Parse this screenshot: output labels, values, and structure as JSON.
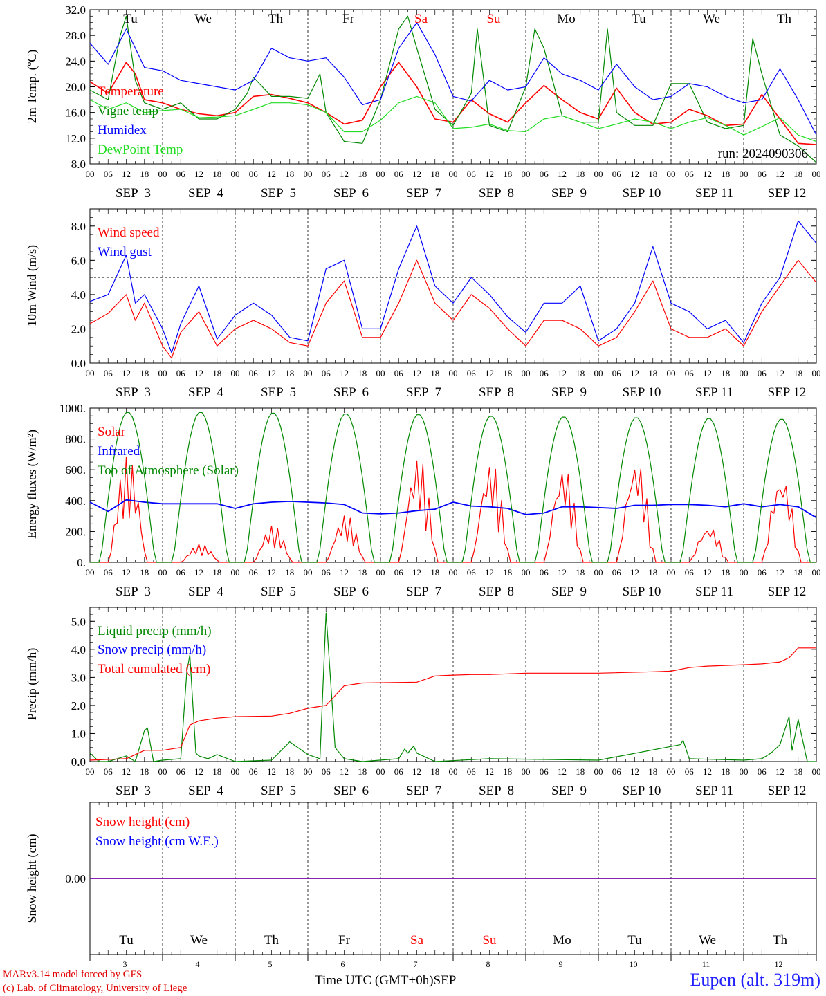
{
  "run_label": "run: 2024090306",
  "x_axis": {
    "hour_labels": [
      "00",
      "06",
      "12",
      "18"
    ],
    "final_hour_label": "00",
    "date_labels": [
      "SEP  3",
      "SEP  4",
      "SEP  5",
      "SEP  6",
      "SEP  7",
      "SEP  8",
      "SEP  9",
      "SEP 10",
      "SEP 11",
      "SEP 12"
    ],
    "days": [
      {
        "label": "Tu",
        "weekend": false
      },
      {
        "label": "We",
        "weekend": false
      },
      {
        "label": "Th",
        "weekend": false
      },
      {
        "label": "Fr",
        "weekend": false
      },
      {
        "label": "Sa",
        "weekend": true
      },
      {
        "label": "Su",
        "weekend": true
      },
      {
        "label": "Mo",
        "weekend": false
      },
      {
        "label": "Tu",
        "weekend": false
      },
      {
        "label": "We",
        "weekend": false
      },
      {
        "label": "Th",
        "weekend": false
      }
    ],
    "day_numbers": [
      "3",
      "4",
      "5",
      "6",
      "7",
      "8",
      "9",
      "10",
      "11",
      "12"
    ],
    "title": "Time UTC (GMT+0h)",
    "month": "SEP"
  },
  "colors": {
    "red": "#ff0000",
    "green": "#008800",
    "blue": "#0000ff",
    "lightgreen": "#22dd22",
    "weekend": "#ff0000",
    "snowline": "#7700aa"
  },
  "chart_data": [
    {
      "type": "line",
      "ylabel": "2m Temp. (ºC)",
      "ylim": [
        8,
        32
      ],
      "yticks": [
        "8.0",
        "12.0",
        "16.0",
        "20.0",
        "24.0",
        "28.0",
        "32.0"
      ],
      "x_unit": "hours since SEP 3 00 UTC",
      "series": [
        {
          "name": "Temperature",
          "color": "red",
          "x": [
            0,
            6,
            12,
            15,
            18,
            24,
            30,
            36,
            42,
            48,
            54,
            60,
            66,
            72,
            78,
            84,
            90,
            96,
            102,
            108,
            114,
            120,
            126,
            132,
            138,
            144,
            150,
            156,
            162,
            168,
            174,
            180,
            186,
            192,
            198,
            204,
            210,
            216,
            222,
            228,
            234,
            240
          ],
          "values": [
            20.8,
            19,
            23.8,
            22,
            18,
            17.5,
            16.5,
            15.8,
            15.5,
            16,
            18.5,
            18.8,
            18.2,
            17.5,
            16,
            14.2,
            14.8,
            20,
            23.8,
            20,
            15,
            14.5,
            18,
            15.8,
            14.5,
            17.5,
            20.2,
            18,
            16,
            15,
            19.8,
            16,
            14.2,
            14.5,
            16.5,
            15.5,
            14,
            14.2,
            18.8,
            15,
            11.2,
            11
          ]
        },
        {
          "name": "Vigne temp",
          "color": "green",
          "x": [
            0,
            6,
            10,
            12,
            15,
            18,
            24,
            30,
            36,
            42,
            48,
            52,
            54,
            60,
            66,
            72,
            76,
            78,
            84,
            90,
            96,
            102,
            105,
            108,
            114,
            120,
            126,
            128,
            132,
            138,
            144,
            147,
            150,
            156,
            162,
            168,
            171,
            174,
            180,
            186,
            192,
            198,
            204,
            210,
            216,
            219,
            222,
            228,
            234,
            240
          ],
          "values": [
            19.5,
            18,
            28,
            31,
            21,
            17.5,
            16.5,
            17.5,
            15,
            15,
            16.5,
            19,
            21.5,
            18.5,
            18.5,
            18.2,
            22,
            16,
            11.5,
            11.2,
            18,
            29,
            31,
            26,
            16.5,
            14,
            19,
            29,
            14,
            13,
            20,
            29,
            26,
            15.5,
            14.5,
            14.5,
            29,
            16,
            14,
            14,
            20.5,
            20.5,
            14.5,
            13.5,
            14,
            27.5,
            22,
            12.5,
            10.8,
            8.2
          ]
        },
        {
          "name": "Humidex",
          "color": "blue",
          "x": [
            0,
            6,
            12,
            18,
            24,
            30,
            36,
            42,
            48,
            54,
            60,
            66,
            72,
            78,
            84,
            90,
            96,
            102,
            108,
            114,
            120,
            126,
            132,
            138,
            144,
            150,
            156,
            162,
            168,
            174,
            180,
            186,
            192,
            198,
            204,
            210,
            216,
            222,
            228,
            234,
            240
          ],
          "values": [
            26.8,
            23.5,
            29,
            23,
            22.5,
            21,
            20.5,
            20,
            19.5,
            21,
            26,
            24.5,
            24,
            24.5,
            21.5,
            17.2,
            18,
            26,
            30,
            25,
            18.5,
            17.8,
            21,
            19.5,
            20,
            24.5,
            22,
            21,
            19.5,
            23.5,
            20,
            18,
            18.5,
            20.5,
            20,
            18.5,
            17.5,
            18,
            22.8,
            18,
            12.5
          ]
        },
        {
          "name": "DewPoint Temp",
          "color": "lightgreen",
          "x": [
            0,
            6,
            12,
            18,
            24,
            30,
            36,
            42,
            48,
            54,
            60,
            66,
            72,
            78,
            84,
            90,
            96,
            102,
            108,
            114,
            120,
            126,
            132,
            138,
            144,
            150,
            156,
            162,
            168,
            174,
            180,
            186,
            192,
            198,
            204,
            210,
            216,
            222,
            228,
            234,
            240
          ],
          "values": [
            18,
            16.5,
            17.5,
            16,
            16.3,
            16.5,
            15.2,
            15.3,
            15.5,
            16.5,
            17.5,
            17.5,
            17.2,
            16,
            13,
            13,
            14.8,
            17.5,
            18.5,
            17.5,
            13.5,
            13.7,
            14.2,
            13.2,
            13,
            15,
            15.5,
            14.5,
            13.5,
            14.2,
            15,
            14.5,
            13.5,
            14.5,
            15.2,
            14,
            12.5,
            13.8,
            15.2,
            12.5,
            11.5
          ]
        }
      ]
    },
    {
      "type": "line",
      "ylabel": "10m Wind (m/s)",
      "ylim": [
        0,
        9
      ],
      "yticks": [
        "0.0",
        "2.0",
        "4.0",
        "6.0",
        "8.0"
      ],
      "reference_line": 5,
      "series": [
        {
          "name": "Wind speed",
          "color": "red",
          "x": [
            0,
            6,
            12,
            15,
            18,
            24,
            27,
            30,
            36,
            42,
            48,
            54,
            60,
            66,
            72,
            78,
            84,
            90,
            96,
            102,
            108,
            114,
            120,
            126,
            132,
            138,
            144,
            150,
            156,
            162,
            168,
            174,
            180,
            186,
            192,
            198,
            204,
            210,
            216,
            222,
            228,
            234,
            240
          ],
          "values": [
            2.3,
            2.9,
            4,
            2.5,
            3.5,
            1,
            0.3,
            1.8,
            3,
            1,
            2,
            2.5,
            2,
            1.2,
            1,
            3.5,
            4.8,
            1.5,
            1.5,
            3.5,
            6,
            3.5,
            2.5,
            4,
            3.2,
            2,
            1,
            2.5,
            2.5,
            2,
            1,
            1.5,
            3,
            4.8,
            2,
            1.5,
            1.5,
            2,
            1,
            3,
            4.5,
            6,
            4.7
          ]
        },
        {
          "name": "Wind gust",
          "color": "blue",
          "x": [
            0,
            6,
            12,
            15,
            18,
            24,
            27,
            30,
            36,
            42,
            48,
            54,
            60,
            66,
            72,
            78,
            84,
            90,
            96,
            102,
            108,
            114,
            120,
            126,
            132,
            138,
            144,
            150,
            156,
            162,
            168,
            174,
            180,
            186,
            192,
            198,
            204,
            210,
            216,
            222,
            228,
            234,
            240
          ],
          "values": [
            3.6,
            4,
            6.3,
            3.5,
            4,
            2,
            0.6,
            2.3,
            4.5,
            1.4,
            2.8,
            3.5,
            2.8,
            1.5,
            1.3,
            5.5,
            6,
            2,
            2,
            5.5,
            8,
            4.5,
            3.5,
            5,
            4,
            2.7,
            1.8,
            3.5,
            3.5,
            4.5,
            1.3,
            2,
            3.5,
            6.8,
            3.5,
            3,
            2,
            2.5,
            1.2,
            3.5,
            5,
            8.3,
            7
          ]
        }
      ]
    },
    {
      "type": "line",
      "ylabel": "Energy fluxes (W/m²)",
      "ylim": [
        0,
        1000
      ],
      "yticks": [
        "0.",
        "200.",
        "400.",
        "600.",
        "800.",
        "1000."
      ],
      "series": [
        {
          "name": "Solar",
          "color": "red",
          "peaks": [
            690,
            120,
            240,
            310,
            690,
            660,
            630,
            680,
            240,
            580
          ]
        },
        {
          "name": "Infrared",
          "color": "blue",
          "x": [
            0,
            6,
            12,
            18,
            24,
            30,
            36,
            42,
            48,
            54,
            60,
            66,
            72,
            78,
            84,
            90,
            96,
            102,
            108,
            114,
            120,
            126,
            132,
            138,
            144,
            150,
            156,
            162,
            168,
            174,
            180,
            186,
            192,
            198,
            204,
            210,
            216,
            222,
            228,
            234,
            240
          ],
          "values": [
            390,
            330,
            405,
            390,
            380,
            380,
            380,
            380,
            350,
            380,
            390,
            395,
            390,
            385,
            375,
            320,
            315,
            320,
            335,
            345,
            390,
            365,
            360,
            350,
            310,
            320,
            360,
            360,
            355,
            350,
            370,
            370,
            375,
            375,
            370,
            360,
            380,
            360,
            375,
            360,
            290
          ]
        },
        {
          "name": "Top of Atmosphere (Solar)",
          "color": "green",
          "peaks": [
            975,
            975,
            970,
            965,
            960,
            950,
            945,
            940,
            935,
            930
          ]
        }
      ]
    },
    {
      "type": "line",
      "ylabel": "Precip (mm/h)",
      "ylim": [
        0,
        5.5
      ],
      "yticks": [
        "0.0",
        "1.0",
        "2.0",
        "3.0",
        "4.0",
        "5.0"
      ],
      "series": [
        {
          "name": "Liquid precip (mm/h)",
          "color": "green",
          "x": [
            0,
            3,
            6,
            12,
            15,
            18,
            19,
            21,
            24,
            30,
            32,
            33,
            35,
            36,
            39,
            42,
            48,
            60,
            66,
            72,
            76,
            78,
            81,
            84,
            90,
            102,
            104,
            105,
            107,
            108,
            114,
            132,
            168,
            195,
            196,
            198,
            216,
            222,
            225,
            228,
            231,
            232,
            234,
            237,
            240
          ],
          "values": [
            0.3,
            0,
            0,
            0.2,
            0,
            1.1,
            1.2,
            0,
            0.05,
            0.1,
            3.2,
            3.8,
            0.3,
            0.2,
            0.1,
            0.25,
            0,
            0.05,
            0.7,
            0.25,
            0.1,
            5.3,
            0.5,
            0.1,
            0,
            0.1,
            0.45,
            0.3,
            0.55,
            0.3,
            0,
            0.1,
            0.05,
            0.6,
            0.75,
            0.1,
            0.05,
            0.1,
            0.3,
            0.6,
            1.6,
            0.4,
            1.5,
            0,
            0
          ]
        },
        {
          "name": "Snow precip (mm/h)",
          "color": "blue",
          "x": [
            0,
            240
          ],
          "values": [
            0,
            0
          ]
        },
        {
          "name": "Total cumulated (cm)",
          "color": "red",
          "x": [
            0,
            12,
            18,
            24,
            30,
            33,
            36,
            42,
            48,
            60,
            66,
            72,
            78,
            84,
            90,
            102,
            108,
            114,
            120,
            126,
            132,
            144,
            168,
            186,
            192,
            198,
            204,
            216,
            222,
            228,
            231,
            234,
            240
          ],
          "values": [
            0.05,
            0.1,
            0.4,
            0.4,
            0.5,
            1.3,
            1.45,
            1.55,
            1.6,
            1.62,
            1.72,
            1.9,
            2,
            2.7,
            2.8,
            2.82,
            2.83,
            3.05,
            3.08,
            3.1,
            3.1,
            3.15,
            3.15,
            3.2,
            3.22,
            3.35,
            3.4,
            3.45,
            3.48,
            3.55,
            3.7,
            4.05,
            4.05
          ]
        }
      ]
    },
    {
      "type": "line",
      "ylabel": "Snow height (cm)",
      "yticks": [
        "0.00"
      ],
      "series": [
        {
          "name": "Snow height (cm)",
          "color": "red",
          "x": [
            0,
            240
          ],
          "values": [
            0,
            0
          ]
        },
        {
          "name": "Snow height (cm W.E.)",
          "color": "blue",
          "x": [
            0,
            240
          ],
          "values": [
            0,
            0
          ]
        }
      ]
    }
  ],
  "footer": {
    "line1": "MARv3.14 model forced by GFS",
    "line2": "(c) Lab. of Climatology, University of Liege",
    "location": "Eupen (alt. 319m)"
  }
}
